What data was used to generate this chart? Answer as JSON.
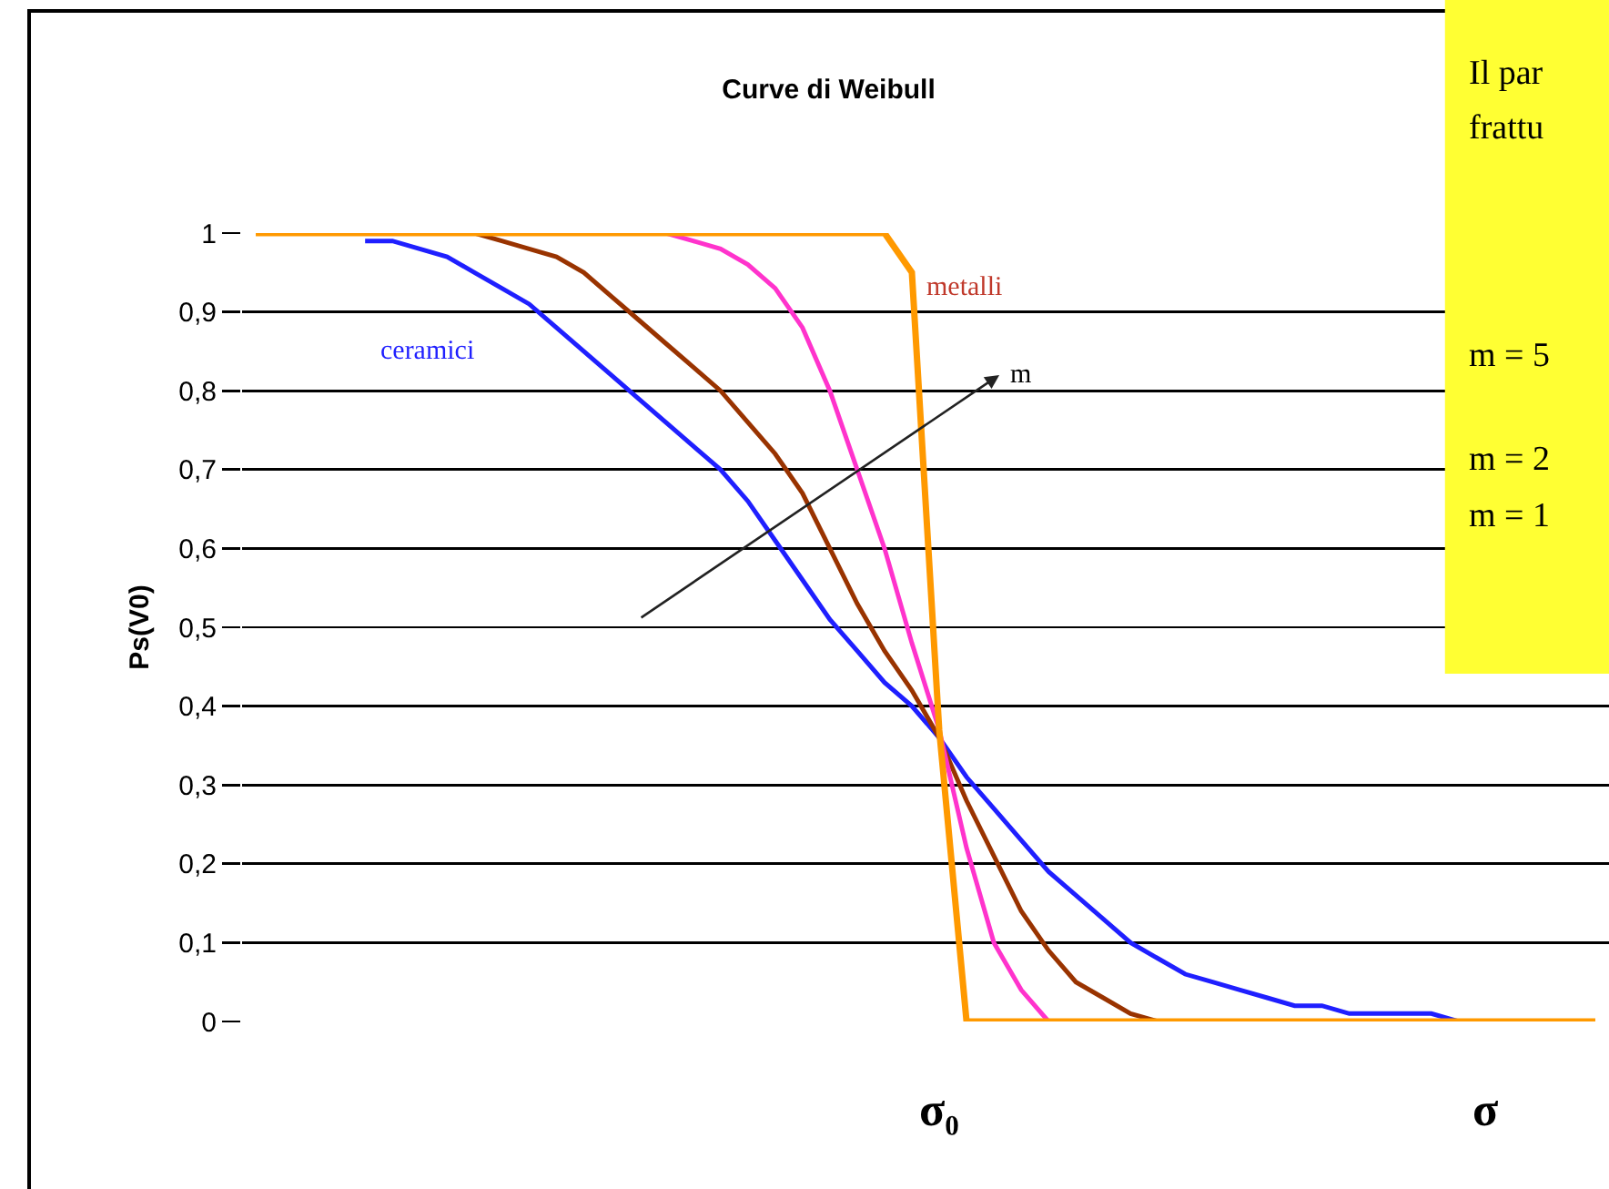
{
  "chart_data": {
    "type": "line",
    "title": "Curve di Weibull",
    "ylabel": "Ps(V0)",
    "xlabel": "σ",
    "categories": [
      null,
      null,
      null,
      null,
      null,
      null,
      null,
      null,
      null,
      null,
      null,
      null,
      null,
      null,
      null,
      null,
      null,
      null,
      null,
      null,
      null,
      null,
      null,
      null,
      null,
      null,
      null,
      null,
      null,
      null,
      null,
      null,
      null,
      null,
      null,
      null,
      null,
      null,
      null,
      null,
      null,
      null,
      null,
      null,
      null,
      null,
      null,
      null,
      null,
      null
    ],
    "series": [
      {
        "name": "ceramici",
        "color": "#1f1fff",
        "values": [
          null,
          null,
          null,
          null,
          0.99,
          0.99,
          0.98,
          0.97,
          0.95,
          0.93,
          0.91,
          0.88,
          0.85,
          0.82,
          0.79,
          0.76,
          0.73,
          0.7,
          0.66,
          0.61,
          0.56,
          0.51,
          0.47,
          0.43,
          0.4,
          0.36,
          0.31,
          0.27,
          0.23,
          0.19,
          0.16,
          0.13,
          0.1,
          0.08,
          0.06,
          0.05,
          0.04,
          0.03,
          0.02,
          0.02,
          0.01,
          0.01,
          0.01,
          0.01,
          0,
          null,
          null,
          null,
          null,
          null
        ]
      },
      {
        "color": "#993300",
        "values": [
          null,
          null,
          null,
          null,
          null,
          null,
          null,
          null,
          1.0,
          0.99,
          0.98,
          0.97,
          0.95,
          0.92,
          0.89,
          0.86,
          0.83,
          0.8,
          0.76,
          0.72,
          0.67,
          0.6,
          0.53,
          0.47,
          0.42,
          0.36,
          0.28,
          0.21,
          0.14,
          0.09,
          0.05,
          0.03,
          0.01,
          0,
          0,
          null,
          null,
          null,
          null,
          null,
          null,
          null,
          null,
          null,
          null,
          null,
          null,
          null,
          null,
          null
        ]
      },
      {
        "color": "#ff33cc",
        "values": [
          null,
          null,
          null,
          null,
          null,
          null,
          null,
          null,
          null,
          null,
          null,
          null,
          null,
          null,
          null,
          1,
          0.99,
          0.98,
          0.96,
          0.93,
          0.88,
          0.8,
          0.7,
          0.6,
          0.48,
          0.37,
          0.22,
          0.1,
          0.04,
          0,
          null,
          null,
          null,
          null,
          null,
          null,
          null,
          null,
          null,
          null,
          null,
          null,
          null,
          null,
          null,
          null,
          null,
          null,
          null,
          null
        ]
      },
      {
        "name": "metalli",
        "color": "#ff9900",
        "values": [
          1,
          1,
          1,
          1,
          1,
          1,
          1,
          1,
          1,
          1,
          1,
          1,
          1,
          1,
          1,
          1,
          1,
          1,
          1,
          1,
          1,
          1,
          1,
          1,
          0.95,
          0.37,
          0,
          0,
          0,
          0,
          0,
          0,
          0,
          0,
          0,
          0,
          0,
          0,
          0,
          0,
          0,
          0,
          0,
          0,
          0,
          0,
          0,
          0,
          0,
          0
        ]
      }
    ],
    "ylim": [
      0,
      1
    ],
    "yticks": [
      0,
      {
        "value": 0.1,
        "label": "0,1"
      },
      {
        "value": 0.2,
        "label": "0,2"
      },
      {
        "value": 0.3,
        "label": "0,3"
      },
      {
        "value": 0.4,
        "label": "0,4"
      },
      {
        "value": 0.5,
        "label": "0,5"
      },
      {
        "value": 0.6,
        "label": "0,6"
      },
      {
        "value": 0.7,
        "label": "0,7"
      },
      {
        "value": 0.8,
        "label": "0,8"
      },
      {
        "value": 0.9,
        "label": "0,9"
      },
      1
    ],
    "grid": "y",
    "legend": false,
    "marker": "none",
    "line_style": "solid",
    "tick_labels": "y",
    "annotations": [
      "σ₀",
      "m",
      "Il par",
      "frattu",
      "m = 5",
      "m = 2",
      "m = 1"
    ]
  }
}
